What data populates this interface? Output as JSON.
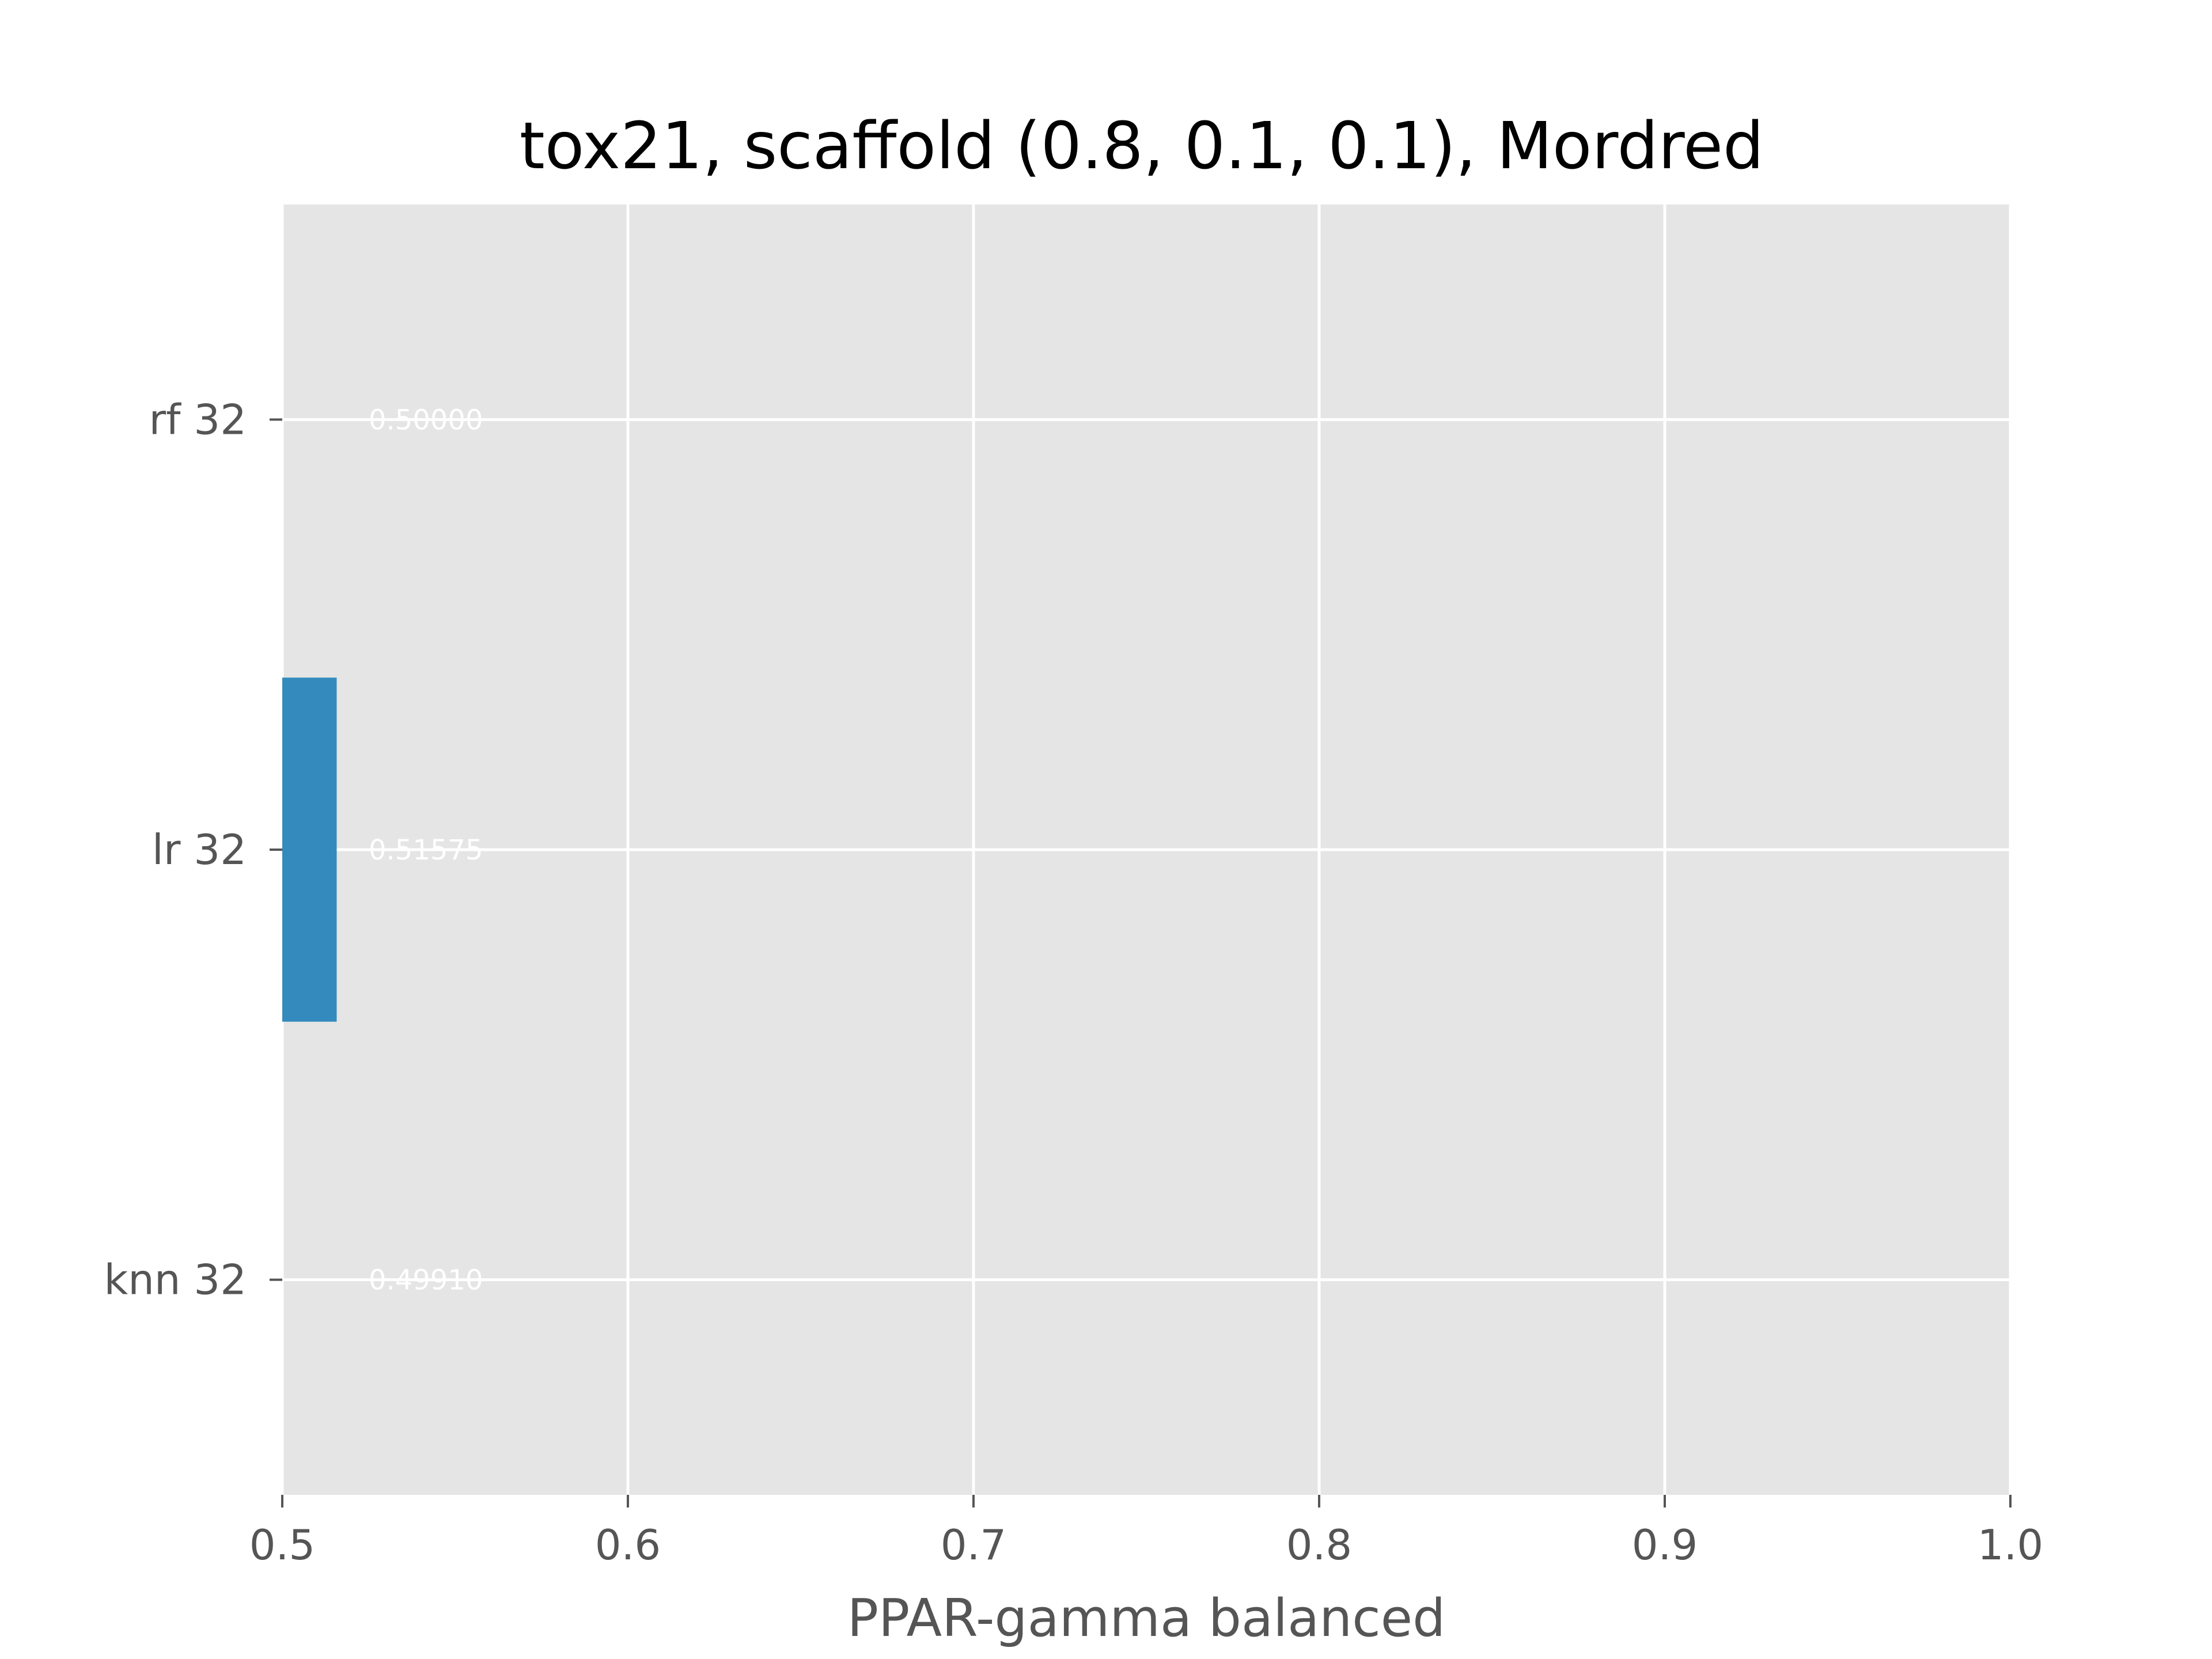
{
  "chart_data": {
    "type": "bar",
    "orientation": "horizontal",
    "title": "tox21, scaffold (0.8, 0.1, 0.1), Mordred",
    "xlabel": "PPAR-gamma balanced",
    "ylabel": "",
    "xlim": [
      0.5,
      1.0
    ],
    "xticks": [
      "0.5",
      "0.6",
      "0.7",
      "0.8",
      "0.9",
      "1.0"
    ],
    "grid": true,
    "categories": [
      "rf 32",
      "lr 32",
      "knn 32"
    ],
    "values": [
      0.5,
      0.51575,
      0.4991
    ],
    "value_labels": [
      "0.50000",
      "0.51575",
      "0.49910"
    ],
    "bar_color": "#348ABD",
    "plot_background": "#E5E5E5",
    "grid_color": "#FFFFFF"
  }
}
